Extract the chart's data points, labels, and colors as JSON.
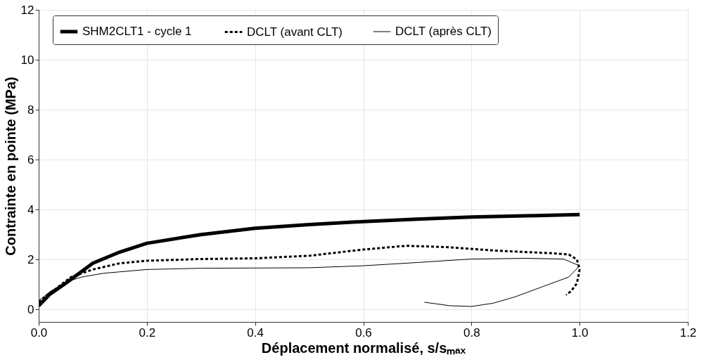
{
  "chart_data": {
    "type": "line",
    "xlabel": "Déplacement normalisé, s/sₘₐₓ",
    "ylabel": "Contrainte en pointe (MPa)",
    "xlim": [
      0,
      1.2
    ],
    "xticks": [
      {
        "value": 0,
        "label": "0.0"
      },
      0.2,
      0.4,
      0.6,
      0.8,
      {
        "value": 1,
        "label": "1.0"
      },
      1.2
    ],
    "ylim": [
      -0.5,
      12
    ],
    "yticks": [
      0,
      2,
      4,
      6,
      8,
      10,
      12
    ],
    "grid": true,
    "legend": "top",
    "marker": "none",
    "series": [
      {
        "name": "SHM2CLT1 - cycle 1",
        "color": "#000000",
        "line_style": "solid",
        "x": [
          0,
          0.02,
          0.05,
          0.1,
          0.15,
          0.2,
          0.3,
          0.4,
          0.5,
          0.6,
          0.7,
          0.8,
          0.9,
          1.0
        ],
        "values": [
          0.15,
          0.6,
          1.05,
          1.85,
          2.3,
          2.65,
          3.0,
          3.25,
          3.4,
          3.52,
          3.62,
          3.7,
          3.75,
          3.8
        ]
      },
      {
        "name": "DCLT (avant CLT)",
        "color": "#000000",
        "line_style": "dashed",
        "x": [
          0,
          0.03,
          0.06,
          0.1,
          0.15,
          0.2,
          0.3,
          0.4,
          0.5,
          0.6,
          0.68,
          0.75,
          0.85,
          0.95,
          0.98,
          0.995,
          1.0,
          0.995,
          0.985,
          0.975
        ],
        "values": [
          0.3,
          0.8,
          1.3,
          1.6,
          1.85,
          1.95,
          2.02,
          2.05,
          2.15,
          2.4,
          2.55,
          2.5,
          2.35,
          2.25,
          2.2,
          2.0,
          1.6,
          1.05,
          0.75,
          0.58
        ]
      },
      {
        "name": "DCLT (après CLT)",
        "color": "#000000",
        "line_style": "solid",
        "x": [
          0,
          0.02,
          0.05,
          0.08,
          0.12,
          0.2,
          0.3,
          0.5,
          0.6,
          0.7,
          0.8,
          0.9,
          0.97,
          1.0,
          0.98,
          0.93,
          0.88,
          0.84,
          0.8,
          0.76,
          0.713
        ],
        "values": [
          0.35,
          0.7,
          1.1,
          1.3,
          1.45,
          1.6,
          1.65,
          1.67,
          1.75,
          1.88,
          2.02,
          2.05,
          2.02,
          1.75,
          1.3,
          0.9,
          0.5,
          0.25,
          0.12,
          0.15,
          0.29
        ]
      }
    ]
  }
}
